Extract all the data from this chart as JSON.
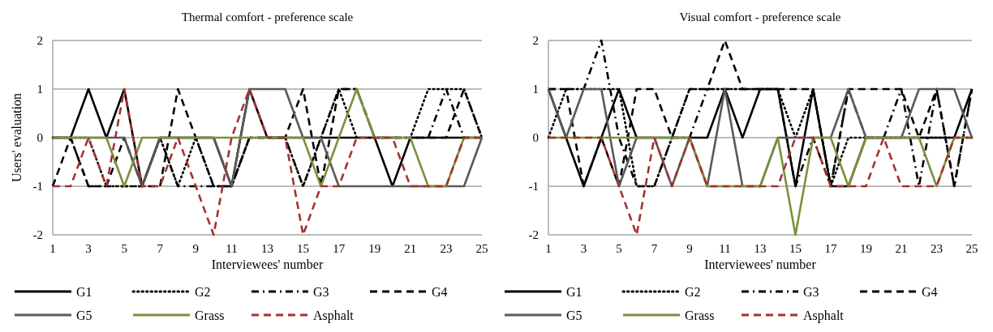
{
  "chart_data": [
    {
      "type": "line",
      "title": "Thermal comfort - preference scale",
      "xlabel": "Interviewees' number",
      "ylabel": "Users' evaluation",
      "x": [
        1,
        2,
        3,
        4,
        5,
        6,
        7,
        8,
        9,
        10,
        11,
        12,
        13,
        14,
        15,
        16,
        17,
        18,
        19,
        20,
        21,
        22,
        23,
        24,
        25
      ],
      "xlim": [
        1,
        25
      ],
      "xticks": [
        1,
        3,
        5,
        7,
        9,
        11,
        13,
        15,
        17,
        19,
        21,
        23,
        25
      ],
      "ylim": [
        -2,
        2
      ],
      "yticks": [
        -2,
        -1,
        0,
        1,
        2
      ],
      "grid": "y",
      "legend": "bottom",
      "series": [
        {
          "name": "G1",
          "color": "#000000",
          "line_style": "solid",
          "values": [
            0,
            0,
            1,
            0,
            1,
            -1,
            0,
            0,
            0,
            0,
            -1,
            1,
            0,
            0,
            0,
            0,
            0,
            0,
            0,
            -1,
            0,
            0,
            0,
            0,
            0
          ]
        },
        {
          "name": "G2",
          "color": "#000000",
          "line_style": "dotted",
          "values": [
            0,
            0,
            0,
            -1,
            -1,
            -1,
            0,
            -1,
            0,
            -1,
            -1,
            0,
            0,
            0,
            -1,
            0,
            1,
            0,
            0,
            0,
            0,
            1,
            1,
            1,
            0
          ]
        },
        {
          "name": "G3",
          "color": "#000000",
          "line_style": "dashdot",
          "values": [
            0,
            0,
            -1,
            -1,
            -1,
            -1,
            0,
            -1,
            -1,
            -1,
            -1,
            0,
            0,
            0,
            -1,
            0,
            1,
            1,
            0,
            0,
            0,
            0,
            1,
            0,
            0
          ]
        },
        {
          "name": "G4",
          "color": "#000000",
          "line_style": "dashed",
          "values": [
            -1,
            0,
            -1,
            -1,
            0,
            -1,
            -1,
            1,
            0,
            -1,
            -1,
            0,
            0,
            0,
            1,
            -1,
            1,
            1,
            0,
            0,
            0,
            0,
            0,
            1,
            0
          ]
        },
        {
          "name": "G5",
          "color": "#595959",
          "line_style": "solid",
          "values": [
            0,
            0,
            0,
            0,
            0,
            -1,
            0,
            0,
            0,
            0,
            -1,
            1,
            1,
            1,
            0,
            0,
            -1,
            -1,
            -1,
            -1,
            -1,
            -1,
            -1,
            -1,
            0
          ]
        },
        {
          "name": "Grass",
          "color": "#77933c",
          "line_style": "solid",
          "values": [
            0,
            0,
            0,
            0,
            -1,
            0,
            0,
            0,
            0,
            0,
            0,
            0,
            0,
            0,
            0,
            -1,
            0,
            1,
            0,
            0,
            0,
            -1,
            -1,
            0,
            0
          ]
        },
        {
          "name": "Asphalt",
          "color": "#a5312f",
          "line_style": "dashed",
          "values": [
            -1,
            -1,
            0,
            -1,
            1,
            -1,
            -1,
            0,
            -1,
            -2,
            0,
            1,
            0,
            0,
            -2,
            -1,
            -1,
            0,
            0,
            0,
            -1,
            -1,
            -1,
            0,
            0
          ]
        }
      ]
    },
    {
      "type": "line",
      "title": "Visual comfort - preference scale",
      "xlabel": "Interviewees' number",
      "x": [
        1,
        2,
        3,
        4,
        5,
        6,
        7,
        8,
        9,
        10,
        11,
        12,
        13,
        14,
        15,
        16,
        17,
        18,
        19,
        20,
        21,
        22,
        23,
        24,
        25
      ],
      "xlim": [
        1,
        25
      ],
      "xticks": [
        1,
        3,
        5,
        7,
        9,
        11,
        13,
        15,
        17,
        19,
        21,
        23,
        25
      ],
      "ylim": [
        -2,
        2
      ],
      "yticks": [
        -2,
        -1,
        0,
        1,
        2
      ],
      "grid": "y",
      "legend": "bottom",
      "series": [
        {
          "name": "G1",
          "color": "#000000",
          "line_style": "solid",
          "values": [
            1,
            0,
            -1,
            0,
            1,
            0,
            0,
            0,
            0,
            0,
            1,
            0,
            1,
            1,
            -1,
            1,
            -1,
            -1,
            0,
            0,
            0,
            0,
            0,
            0,
            1
          ]
        },
        {
          "name": "G2",
          "color": "#000000",
          "line_style": "dotted",
          "values": [
            0,
            1,
            1,
            1,
            1,
            -1,
            -1,
            0,
            1,
            1,
            1,
            1,
            1,
            1,
            0,
            1,
            -1,
            0,
            0,
            0,
            0,
            0,
            0,
            0,
            0
          ]
        },
        {
          "name": "G3",
          "color": "#000000",
          "line_style": "dashdot",
          "values": [
            1,
            1,
            1,
            2,
            0,
            -1,
            -1,
            0,
            0,
            1,
            1,
            1,
            1,
            1,
            -1,
            0,
            -1,
            1,
            0,
            0,
            1,
            -1,
            1,
            -1,
            1
          ]
        },
        {
          "name": "G4",
          "color": "#000000",
          "line_style": "dashed",
          "values": [
            1,
            1,
            -1,
            0,
            -1,
            1,
            1,
            0,
            1,
            1,
            2,
            1,
            1,
            1,
            1,
            1,
            -1,
            1,
            1,
            1,
            1,
            0,
            1,
            -1,
            1
          ]
        },
        {
          "name": "G5",
          "color": "#595959",
          "line_style": "solid",
          "values": [
            1,
            0,
            1,
            1,
            -1,
            0,
            0,
            -1,
            0,
            -1,
            1,
            -1,
            -1,
            0,
            0,
            0,
            0,
            1,
            0,
            0,
            0,
            1,
            1,
            1,
            0
          ]
        },
        {
          "name": "Grass",
          "color": "#77933c",
          "line_style": "solid",
          "values": [
            0,
            0,
            0,
            0,
            0,
            0,
            0,
            0,
            0,
            -1,
            -1,
            -1,
            -1,
            0,
            -2,
            0,
            0,
            -1,
            0,
            0,
            0,
            0,
            -1,
            0,
            0
          ]
        },
        {
          "name": "Asphalt",
          "color": "#a5312f",
          "line_style": "dashed",
          "values": [
            0,
            0,
            0,
            0,
            -1,
            -2,
            0,
            -1,
            0,
            -1,
            -1,
            -1,
            -1,
            -1,
            0,
            0,
            -1,
            -1,
            -1,
            0,
            -1,
            -1,
            -1,
            0,
            0
          ]
        }
      ]
    }
  ]
}
